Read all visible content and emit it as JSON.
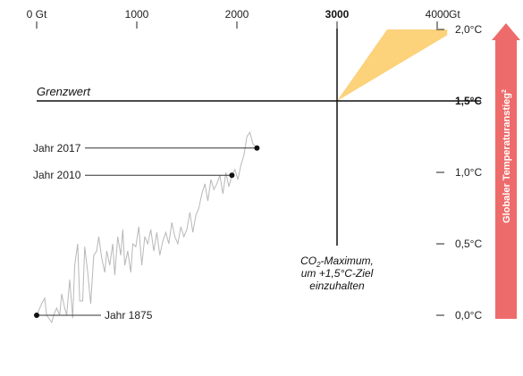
{
  "chart_data": {
    "type": "line",
    "x_axis": {
      "ticks": [
        {
          "value": 0,
          "label": "0 Gt",
          "bold": false
        },
        {
          "value": 1000,
          "label": "1000",
          "bold": false
        },
        {
          "value": 2000,
          "label": "2000",
          "bold": false
        },
        {
          "value": 3000,
          "label": "3000",
          "bold": true
        },
        {
          "value": 4000,
          "label": "4000",
          "bold": false
        }
      ],
      "end_unit": "Gt",
      "range": [
        0,
        4000
      ]
    },
    "y_axis": {
      "ticks": [
        {
          "value": 0.0,
          "label": "0,0°C",
          "bold": false
        },
        {
          "value": 0.5,
          "label": "0,5°C",
          "bold": false
        },
        {
          "value": 1.0,
          "label": "1,0°C",
          "bold": false
        },
        {
          "value": 1.5,
          "label": "1,5°C",
          "bold": true
        },
        {
          "value": 2.0,
          "label": "2,0°C",
          "bold": false
        }
      ],
      "label": "Globaler Temperaturanstieg",
      "label_superscript": "2",
      "range": [
        -0.25,
        2.05
      ]
    },
    "limit_line": {
      "value": 1.5,
      "label": "Grenzwert"
    },
    "co2_max": {
      "x": 3000,
      "line1_pre": "CO",
      "line1_sub": "2",
      "line1_post": "-Maximum,",
      "line2": "um +1,5°C-Ziel",
      "line3": "einzuhalten"
    },
    "markers": [
      {
        "x": 2200,
        "y": 1.17,
        "label": "Jahr 2017"
      },
      {
        "x": 1950,
        "y": 0.98,
        "label": "Jahr 2010"
      },
      {
        "x": 0,
        "y": 0.0,
        "label": "Jahr 1875"
      }
    ],
    "projection_band": {
      "upper": [
        [
          1950,
          0.98
        ],
        [
          3000,
          1.5
        ],
        [
          3500,
          2.0
        ],
        [
          4100,
          2.0
        ]
      ],
      "lower": [
        [
          1950,
          0.98
        ],
        [
          3000,
          1.5
        ],
        [
          4100,
          1.96
        ]
      ]
    },
    "series": [
      {
        "x": [
          0,
          50,
          80,
          100,
          150,
          180,
          200,
          230,
          250,
          280,
          300,
          330,
          360,
          380,
          410,
          430,
          460,
          480,
          510,
          540,
          570,
          600,
          620,
          650,
          680,
          700,
          730,
          760,
          780,
          810,
          840,
          860,
          880,
          910,
          940,
          960,
          990,
          1020,
          1050,
          1080,
          1110,
          1140,
          1170,
          1200,
          1230,
          1260,
          1290,
          1320,
          1350,
          1380,
          1410,
          1440,
          1470,
          1500,
          1530,
          1560,
          1590,
          1620,
          1650,
          1680,
          1710,
          1740,
          1770,
          1800,
          1830,
          1860,
          1890,
          1920,
          1950,
          1980,
          2010,
          2040,
          2070,
          2100,
          2130,
          2160,
          2200
        ],
        "y": [
          0.0,
          0.08,
          0.12,
          0.0,
          -0.05,
          0.02,
          0.05,
          0.0,
          0.15,
          0.05,
          0.0,
          0.25,
          -0.02,
          0.35,
          0.5,
          0.1,
          0.1,
          0.48,
          0.3,
          0.08,
          0.42,
          0.45,
          0.55,
          0.4,
          0.3,
          0.45,
          0.35,
          0.5,
          0.28,
          0.55,
          0.42,
          0.6,
          0.35,
          0.45,
          0.3,
          0.5,
          0.48,
          0.62,
          0.35,
          0.55,
          0.5,
          0.6,
          0.45,
          0.58,
          0.42,
          0.52,
          0.58,
          0.5,
          0.65,
          0.55,
          0.5,
          0.62,
          0.55,
          0.6,
          0.72,
          0.58,
          0.7,
          0.75,
          0.85,
          0.92,
          0.8,
          0.95,
          0.88,
          0.92,
          0.98,
          0.85,
          1.0,
          0.9,
          0.98,
          1.02,
          0.95,
          1.05,
          1.12,
          1.25,
          1.28,
          1.2,
          1.17
        ]
      }
    ]
  }
}
